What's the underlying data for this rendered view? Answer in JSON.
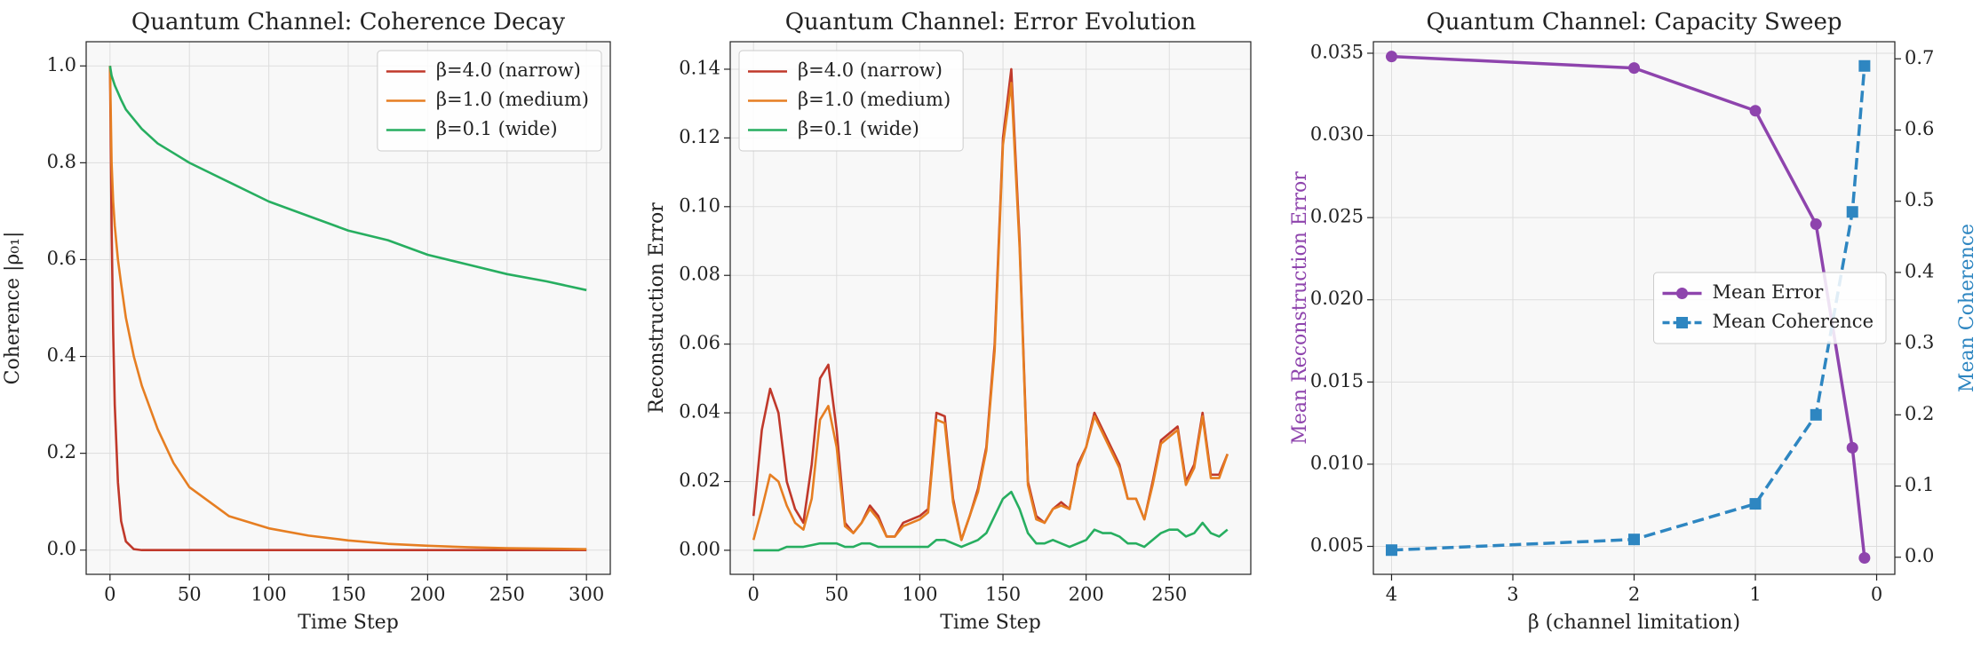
{
  "chart_data": [
    {
      "type": "line",
      "title": "Quantum Channel: Coherence Decay",
      "xlabel": "Time Step",
      "ylabel": "Coherence |ρ₀₁|",
      "x": [
        0,
        1,
        2,
        3,
        5,
        7,
        10,
        15,
        20,
        30,
        40,
        50,
        75,
        100,
        125,
        150,
        175,
        200,
        225,
        250,
        275,
        300
      ],
      "series": [
        {
          "name": "β=4.0 (narrow)",
          "color": "#c0392b",
          "values": [
            1,
            0.67,
            0.45,
            0.3,
            0.14,
            0.06,
            0.018,
            0.002,
            0,
            0,
            0,
            0,
            0,
            0,
            0,
            0,
            0,
            0,
            0,
            0,
            0,
            0
          ]
        },
        {
          "name": "β=1.0 (medium)",
          "color": "#e67e22",
          "values": [
            1,
            0.8,
            0.72,
            0.67,
            0.6,
            0.55,
            0.48,
            0.4,
            0.34,
            0.25,
            0.18,
            0.13,
            0.07,
            0.045,
            0.03,
            0.02,
            0.013,
            0.009,
            0.006,
            0.004,
            0.003,
            0.002
          ]
        },
        {
          "name": "β=0.1 (wide)",
          "color": "#27ae60",
          "values": [
            1,
            0.98,
            0.97,
            0.96,
            0.945,
            0.93,
            0.91,
            0.89,
            0.87,
            0.84,
            0.82,
            0.8,
            0.76,
            0.72,
            0.69,
            0.66,
            0.64,
            0.61,
            0.59,
            0.57,
            0.555,
            0.537
          ]
        }
      ],
      "xlim": [
        -15,
        315
      ],
      "xticks": [
        0,
        50,
        100,
        150,
        200,
        250,
        300
      ],
      "ylim": [
        -0.05,
        1.05
      ],
      "yticks": [
        {
          "value": 0,
          "label": "0.0"
        },
        0.2,
        0.4,
        0.6,
        0.8,
        {
          "value": 1,
          "label": "1.0"
        }
      ],
      "grid": true,
      "legend": "upper right"
    },
    {
      "type": "line",
      "title": "Quantum Channel: Error Evolution",
      "xlabel": "Time Step",
      "ylabel": "Reconstruction Error",
      "x": [
        0,
        5,
        10,
        15,
        20,
        25,
        30,
        35,
        40,
        45,
        50,
        55,
        60,
        65,
        70,
        75,
        80,
        85,
        90,
        95,
        100,
        105,
        110,
        115,
        120,
        125,
        130,
        135,
        140,
        145,
        150,
        155,
        160,
        165,
        170,
        175,
        180,
        185,
        190,
        195,
        200,
        205,
        210,
        215,
        220,
        225,
        230,
        235,
        240,
        245,
        250,
        255,
        260,
        265,
        270,
        275,
        280,
        285
      ],
      "series": [
        {
          "name": "β=4.0 (narrow)",
          "color": "#c0392b",
          "values": [
            0.01,
            0.035,
            0.047,
            0.04,
            0.02,
            0.012,
            0.008,
            0.025,
            0.05,
            0.054,
            0.035,
            0.008,
            0.005,
            0.008,
            0.013,
            0.01,
            0.004,
            0.004,
            0.008,
            0.009,
            0.01,
            0.012,
            0.04,
            0.039,
            0.015,
            0.003,
            0.01,
            0.018,
            0.03,
            0.06,
            0.12,
            0.14,
            0.09,
            0.02,
            0.01,
            0.008,
            0.012,
            0.014,
            0.012,
            0.025,
            0.03,
            0.04,
            0.035,
            0.03,
            0.025,
            0.015,
            0.015,
            0.009,
            0.02,
            0.032,
            0.034,
            0.036,
            0.02,
            0.025,
            0.04,
            0.022,
            0.022,
            0.028
          ]
        },
        {
          "name": "β=1.0 (medium)",
          "color": "#e67e22",
          "values": [
            0.003,
            0.012,
            0.022,
            0.02,
            0.013,
            0.008,
            0.006,
            0.015,
            0.038,
            0.042,
            0.03,
            0.007,
            0.005,
            0.008,
            0.012,
            0.009,
            0.004,
            0.004,
            0.007,
            0.008,
            0.009,
            0.011,
            0.038,
            0.037,
            0.014,
            0.003,
            0.01,
            0.017,
            0.029,
            0.058,
            0.118,
            0.136,
            0.088,
            0.019,
            0.009,
            0.008,
            0.012,
            0.013,
            0.012,
            0.024,
            0.03,
            0.039,
            0.034,
            0.029,
            0.024,
            0.015,
            0.015,
            0.009,
            0.019,
            0.031,
            0.033,
            0.035,
            0.019,
            0.024,
            0.039,
            0.021,
            0.021,
            0.028
          ]
        },
        {
          "name": "β=0.1 (wide)",
          "color": "#27ae60",
          "values": [
            0,
            0,
            0,
            0,
            0.001,
            0.001,
            0.001,
            0.0015,
            0.002,
            0.002,
            0.002,
            0.001,
            0.001,
            0.002,
            0.002,
            0.001,
            0.001,
            0.001,
            0.001,
            0.001,
            0.001,
            0.001,
            0.003,
            0.003,
            0.002,
            0.001,
            0.002,
            0.003,
            0.005,
            0.01,
            0.015,
            0.017,
            0.012,
            0.005,
            0.002,
            0.002,
            0.003,
            0.002,
            0.001,
            0.002,
            0.003,
            0.006,
            0.005,
            0.005,
            0.004,
            0.002,
            0.002,
            0.001,
            0.003,
            0.005,
            0.006,
            0.006,
            0.004,
            0.005,
            0.008,
            0.005,
            0.004,
            0.006
          ]
        }
      ],
      "xlim": [
        -14,
        299
      ],
      "xticks": [
        0,
        50,
        100,
        150,
        200,
        250
      ],
      "ylim": [
        -0.007,
        0.148
      ],
      "yticks": [
        {
          "value": 0,
          "label": "0.00"
        },
        0.02,
        0.04,
        0.06,
        0.08,
        {
          "value": 0.1,
          "label": "0.10"
        },
        0.12,
        0.14
      ],
      "grid": true,
      "legend": "upper left"
    },
    {
      "type": "line",
      "title": "Quantum Channel: Capacity Sweep",
      "xlabel": "β (channel limitation)",
      "ylabel": "Mean Reconstruction Error",
      "ylabel_color": "#8e44ad",
      "y2label": "Mean Coherence",
      "y2label_color": "#2e86c1",
      "x": [
        4,
        2,
        1,
        0.5,
        0.2,
        0.1
      ],
      "series": [
        {
          "name": "Mean Error",
          "color": "#8e44ad",
          "marker": "circle",
          "values": [
            0.0348,
            0.0341,
            0.0315,
            0.0246,
            0.011,
            0.0043
          ]
        },
        {
          "name": "Mean Coherence",
          "color": "#2e86c1",
          "marker": "square",
          "dash": true,
          "axis": "y2",
          "values": [
            0.01,
            0.025,
            0.075,
            0.2,
            0.485,
            0.69
          ]
        }
      ],
      "xlim": [
        4.15,
        -0.15
      ],
      "xticks": [
        4,
        3,
        2,
        1,
        0
      ],
      "ylim": [
        0.0033,
        0.0357
      ],
      "yticks": [
        0.005,
        {
          "value": 0.01,
          "label": "0.010"
        },
        0.015,
        {
          "value": 0.02,
          "label": "0.020"
        },
        0.025,
        {
          "value": 0.03,
          "label": "0.030"
        },
        0.035
      ],
      "y2lim": [
        -0.024,
        0.724
      ],
      "y2ticks": [
        {
          "value": 0,
          "label": "0.0"
        },
        0.1,
        0.2,
        0.3,
        0.4,
        0.5,
        0.6,
        0.7
      ],
      "grid": true,
      "legend": "center right"
    }
  ]
}
